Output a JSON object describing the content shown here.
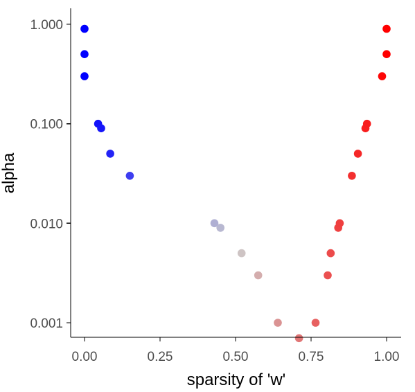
{
  "chart_data": {
    "type": "scatter",
    "title": "",
    "xlabel": "sparsity of 'w'",
    "ylabel": "alpha",
    "xlim": [
      -0.05,
      1.05
    ],
    "ylim": [
      0.0007,
      1.5
    ],
    "y_scale": "log10",
    "x_ticks": [
      "0.00",
      "0.25",
      "0.50",
      "0.75",
      "1.00"
    ],
    "x_tick_values": [
      0,
      0.25,
      0.5,
      0.75,
      1.0
    ],
    "y_ticks": [
      "0.001",
      "0.010",
      "0.100",
      "1.000"
    ],
    "y_tick_values": [
      0.001,
      0.01,
      0.1,
      1.0
    ],
    "grid": false,
    "legend": "none",
    "color_low": "#0000ff",
    "color_mid": "#cccccc",
    "color_high": "#ff0000",
    "series": [
      {
        "points": [
          {
            "x": 0.0,
            "y": 0.9
          },
          {
            "x": 0.0,
            "y": 0.5
          },
          {
            "x": 0.0,
            "y": 0.3
          },
          {
            "x": 0.045,
            "y": 0.1
          },
          {
            "x": 0.055,
            "y": 0.09
          },
          {
            "x": 0.085,
            "y": 0.05
          },
          {
            "x": 0.15,
            "y": 0.03
          },
          {
            "x": 0.43,
            "y": 0.01
          },
          {
            "x": 0.45,
            "y": 0.009
          },
          {
            "x": 0.52,
            "y": 0.005
          },
          {
            "x": 0.575,
            "y": 0.003
          },
          {
            "x": 0.64,
            "y": 0.001
          },
          {
            "x": 0.71,
            "y": 0.0007
          },
          {
            "x": 0.765,
            "y": 0.001
          },
          {
            "x": 0.805,
            "y": 0.003
          },
          {
            "x": 0.815,
            "y": 0.005
          },
          {
            "x": 0.84,
            "y": 0.009
          },
          {
            "x": 0.845,
            "y": 0.01
          },
          {
            "x": 0.885,
            "y": 0.03
          },
          {
            "x": 0.905,
            "y": 0.05
          },
          {
            "x": 0.93,
            "y": 0.09
          },
          {
            "x": 0.935,
            "y": 0.1
          },
          {
            "x": 0.985,
            "y": 0.3
          },
          {
            "x": 1.0,
            "y": 0.5
          },
          {
            "x": 1.0,
            "y": 0.9
          }
        ]
      }
    ]
  }
}
